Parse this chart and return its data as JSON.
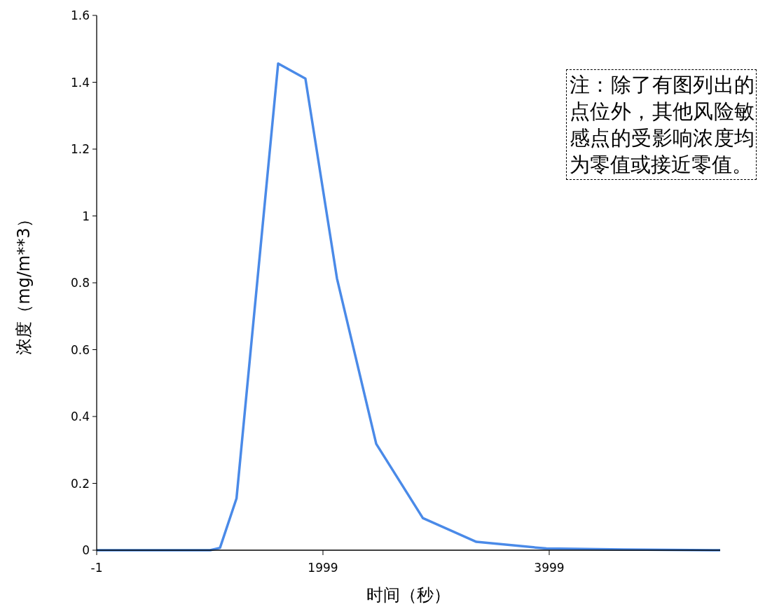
{
  "chart_data": {
    "type": "line",
    "xlabel": "时间（秒）",
    "ylabel": "浓度（mg/m**3）",
    "x": [
      -1,
      1002,
      1089,
      1235,
      1603,
      1844,
      2123,
      2470,
      2882,
      3355,
      3974,
      4655,
      5510
    ],
    "series": [
      {
        "color": "#4a8ae8",
        "values": [
          0,
          0,
          0.007,
          0.155,
          1.456,
          1.411,
          0.813,
          0.318,
          0.096,
          0.025,
          0.005,
          0.002,
          0
        ]
      }
    ],
    "xlim": [
      -1,
      5510
    ],
    "ylim": [
      0,
      1.6
    ],
    "xticks": [
      -1,
      1999,
      3999
    ],
    "yticks": [
      0,
      0.2,
      0.4,
      0.6,
      0.8,
      1,
      1.2,
      1.4,
      1.6
    ],
    "grid": false,
    "marker": "none",
    "line_style": "solid",
    "annotations": [
      "注：除了有图列出的点位外，其他风险敏感点的受影响浓度均为零值或接近零值。"
    ]
  }
}
